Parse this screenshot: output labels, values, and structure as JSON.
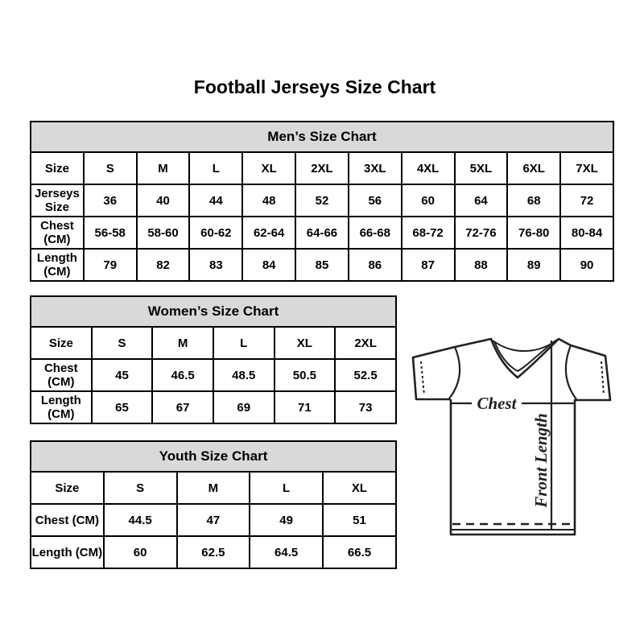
{
  "page": {
    "title": "Football Jerseys Size Chart"
  },
  "colors": {
    "background": "#ffffff",
    "table_border": "#000000",
    "table_header_bg": "#d9d9d9",
    "text": "#000000",
    "diagram_line": "#231f20"
  },
  "tables": {
    "mens": {
      "title": "Men’s Size Chart",
      "rows": [
        [
          "Size",
          "S",
          "M",
          "L",
          "XL",
          "2XL",
          "3XL",
          "4XL",
          "5XL",
          "6XL",
          "7XL"
        ],
        [
          "Jerseys Size",
          "36",
          "40",
          "44",
          "48",
          "52",
          "56",
          "60",
          "64",
          "68",
          "72"
        ],
        [
          "Chest (CM)",
          "56-58",
          "58-60",
          "60-62",
          "62-64",
          "64-66",
          "66-68",
          "68-72",
          "72-76",
          "76-80",
          "80-84"
        ],
        [
          "Length (CM)",
          "79",
          "82",
          "83",
          "84",
          "85",
          "86",
          "87",
          "88",
          "89",
          "90"
        ]
      ]
    },
    "womens": {
      "title": "Women’s Size Chart",
      "rows": [
        [
          "Size",
          "S",
          "M",
          "L",
          "XL",
          "2XL"
        ],
        [
          "Chest (CM)",
          "45",
          "46.5",
          "48.5",
          "50.5",
          "52.5"
        ],
        [
          "Length (CM)",
          "65",
          "67",
          "69",
          "71",
          "73"
        ]
      ]
    },
    "youth": {
      "title": "Youth Size Chart",
      "rows": [
        [
          "Size",
          "S",
          "M",
          "L",
          "XL"
        ],
        [
          "Chest (CM)",
          "44.5",
          "47",
          "49",
          "51"
        ],
        [
          "Length (CM)",
          "60",
          "62.5",
          "64.5",
          "66.5"
        ]
      ]
    }
  },
  "diagram": {
    "chest_label": "Chest",
    "front_length_label": "Front Length"
  }
}
